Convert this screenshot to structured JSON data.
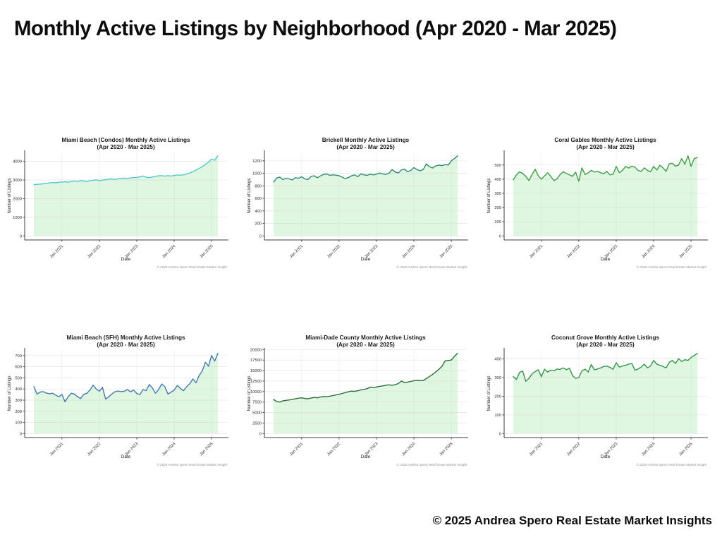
{
  "page": {
    "title": "Monthly Active Listings by Neighborhood (Apr 2020 - Mar 2025)",
    "footer": "© 2025 Andrea Spero Real Estate Market Insights"
  },
  "chart_data": [
    {
      "type": "area",
      "slug": "miami-beach-condos",
      "title": "Miami Beach (Condos) Monthly Active Listings",
      "subtitle": "(Apr 2020 - Mar 2025)",
      "xlabel": "Date",
      "ylabel": "Number of Listings",
      "watermark": "© 2025 Andrea Spero Real Estate Market Insight",
      "line_color": "#54c7cc",
      "fill_color": "#dff6e0",
      "x_range": {
        "start": "2020-04",
        "end": "2025-03",
        "freq": "monthly",
        "count": 60
      },
      "xticks": [
        "Jan 2021",
        "Jan 2022",
        "Jan 2023",
        "Jan 2024",
        "Jan 2025"
      ],
      "xtick_month_index": [
        9,
        21,
        33,
        45,
        57
      ],
      "yticks": [
        0,
        1000,
        2000,
        3000,
        4000
      ],
      "grid": true,
      "values": [
        2750,
        2765,
        2780,
        2800,
        2820,
        2845,
        2860,
        2850,
        2875,
        2890,
        2905,
        2885,
        2925,
        2950,
        2930,
        2960,
        2945,
        2925,
        2955,
        2985,
        3010,
        2965,
        2995,
        3015,
        3045,
        3060,
        3030,
        3065,
        3085,
        3105,
        3080,
        3110,
        3130,
        3140,
        3165,
        3215,
        3150,
        3125,
        3160,
        3195,
        3225,
        3235,
        3205,
        3235,
        3215,
        3245,
        3270,
        3255,
        3280,
        3320,
        3380,
        3450,
        3530,
        3620,
        3720,
        3830,
        3960,
        4120,
        4060,
        4300
      ]
    },
    {
      "type": "area",
      "slug": "brickell",
      "title": "Brickell Monthly Active Listings",
      "subtitle": "(Apr 2020 - Mar 2025)",
      "xlabel": "Date",
      "ylabel": "Number of Listings",
      "watermark": "© 2025 Andrea Spero Real Estate Market Insight",
      "line_color": "#2e8b74",
      "fill_color": "#dff6e0",
      "x_range": {
        "start": "2020-04",
        "end": "2025-03",
        "freq": "monthly",
        "count": 60
      },
      "xticks": [
        "Jan 2021",
        "Jan 2022",
        "Jan 2023",
        "Jan 2024",
        "Jan 2025"
      ],
      "xtick_month_index": [
        9,
        21,
        33,
        45,
        57
      ],
      "yticks": [
        0,
        200,
        400,
        600,
        800,
        1000,
        1200
      ],
      "grid": true,
      "values": [
        860,
        925,
        940,
        900,
        920,
        910,
        895,
        930,
        920,
        945,
        910,
        900,
        950,
        960,
        930,
        958,
        980,
        990,
        968,
        975,
        970,
        962,
        938,
        915,
        932,
        960,
        975,
        945,
        990,
        975,
        968,
        985,
        975,
        985,
        1005,
        990,
        982,
        1000,
        1060,
        1020,
        1005,
        1055,
        1065,
        1025,
        1045,
        1090,
        1060,
        1040,
        1060,
        1150,
        1105,
        1085,
        1120,
        1130,
        1122,
        1138,
        1132,
        1200,
        1235,
        1280
      ]
    },
    {
      "type": "area",
      "slug": "coral-gables",
      "title": "Coral Gables Monthly Active Listings",
      "subtitle": "(Apr 2020 - Mar 2025)",
      "xlabel": "Date",
      "ylabel": "Number of Listings",
      "watermark": "© 2025 Andrea Spero Real Estate Market Insight",
      "line_color": "#3f9d46",
      "fill_color": "#dff6e0",
      "x_range": {
        "start": "2020-04",
        "end": "2025-03",
        "freq": "monthly",
        "count": 60
      },
      "xticks": [
        "Jan 2021",
        "Jan 2022",
        "Jan 2023",
        "Jan 2024",
        "Jan 2025"
      ],
      "xtick_month_index": [
        9,
        21,
        33,
        45,
        57
      ],
      "yticks": [
        0,
        100,
        200,
        300,
        400,
        500
      ],
      "grid": true,
      "values": [
        395,
        430,
        452,
        440,
        420,
        390,
        432,
        470,
        425,
        400,
        422,
        445,
        420,
        390,
        402,
        432,
        452,
        440,
        430,
        420,
        450,
        385,
        480,
        432,
        445,
        462,
        450,
        455,
        445,
        438,
        455,
        430,
        435,
        490,
        445,
        462,
        490,
        478,
        492,
        485,
        462,
        455,
        480,
        462,
        452,
        490,
        465,
        498,
        480,
        455,
        508,
        512,
        492,
        500,
        545,
        505,
        565,
        490,
        545,
        552
      ]
    },
    {
      "type": "area",
      "slug": "miami-beach-sfh",
      "title": "Miami Beach (SFH) Monthly Active Listings",
      "subtitle": "(Apr 2020 - Mar 2025)",
      "xlabel": "Date",
      "ylabel": "Number of Listings",
      "watermark": "© 2025 Andrea Spero Real Estate Market Insight",
      "line_color": "#4679b2",
      "fill_color": "#dff6e0",
      "x_range": {
        "start": "2020-04",
        "end": "2025-03",
        "freq": "monthly",
        "count": 60
      },
      "xticks": [
        "Jan 2021",
        "Jan 2022",
        "Jan 2023",
        "Jan 2024",
        "Jan 2025"
      ],
      "xtick_month_index": [
        9,
        21,
        33,
        45,
        57
      ],
      "yticks": [
        0,
        100,
        200,
        300,
        400,
        500,
        600,
        700
      ],
      "grid": true,
      "values": [
        420,
        355,
        372,
        376,
        364,
        356,
        362,
        345,
        330,
        352,
        285,
        330,
        362,
        355,
        330,
        315,
        352,
        362,
        390,
        435,
        400,
        380,
        415,
        310,
        330,
        355,
        375,
        382,
        375,
        380,
        395,
        375,
        390,
        360,
        350,
        395,
        385,
        440,
        410,
        362,
        395,
        445,
        420,
        355,
        372,
        390,
        432,
        405,
        385,
        420,
        448,
        490,
        455,
        520,
        560,
        640,
        605,
        700,
        650,
        720
      ]
    },
    {
      "type": "area",
      "slug": "miami-dade-county",
      "title": "Miami-Dade County Monthly Active Listings",
      "subtitle": "(Apr 2020 - Mar 2025)",
      "xlabel": "Date",
      "ylabel": "Number of Listings",
      "watermark": "© 2025 Andrea Spero Real Estate Market Insight",
      "line_color": "#2d6e3c",
      "fill_color": "#dff6e0",
      "x_range": {
        "start": "2020-04",
        "end": "2025-03",
        "freq": "monthly",
        "count": 60
      },
      "xticks": [
        "Jan 2021",
        "Jan 2022",
        "Jan 2023",
        "Jan 2024",
        "Jan 2025"
      ],
      "xtick_month_index": [
        9,
        21,
        33,
        45,
        57
      ],
      "yticks": [
        0,
        2500,
        5000,
        7500,
        10000,
        12500,
        15000,
        17500,
        20000
      ],
      "grid": true,
      "values": [
        8100,
        7650,
        7500,
        7800,
        7900,
        8000,
        8100,
        8300,
        8400,
        8500,
        8350,
        8250,
        8450,
        8600,
        8500,
        8700,
        8800,
        8780,
        8900,
        9050,
        9200,
        9350,
        9550,
        9750,
        9950,
        10100,
        10050,
        10200,
        10400,
        10500,
        10700,
        11050,
        10900,
        11100,
        11250,
        11350,
        11500,
        11600,
        11500,
        11650,
        11900,
        12500,
        12150,
        12250,
        12400,
        12600,
        12700,
        12600,
        12650,
        13100,
        13600,
        14100,
        14700,
        15300,
        16000,
        17300,
        17400,
        17500,
        18400,
        19100
      ]
    },
    {
      "type": "area",
      "slug": "coconut-grove",
      "title": "Coconut Grove Monthly Active Listings",
      "subtitle": "(Apr 2020 - Mar 2025)",
      "xlabel": "Date",
      "ylabel": "Number of Listings",
      "watermark": "© 2025 Andrea Spero Real Estate Market Insight",
      "line_color": "#35944a",
      "fill_color": "#dff6e0",
      "x_range": {
        "start": "2020-04",
        "end": "2025-03",
        "freq": "monthly",
        "count": 60
      },
      "xticks": [
        "Jan 2021",
        "Jan 2022",
        "Jan 2023",
        "Jan 2024",
        "Jan 2025"
      ],
      "xtick_month_index": [
        9,
        21,
        33,
        45,
        57
      ],
      "yticks": [
        0,
        100,
        200,
        300,
        400
      ],
      "grid": true,
      "values": [
        305,
        290,
        328,
        335,
        280,
        296,
        320,
        332,
        342,
        305,
        345,
        330,
        340,
        336,
        346,
        344,
        352,
        342,
        350,
        310,
        296,
        300,
        336,
        345,
        330,
        370,
        342,
        346,
        352,
        360,
        362,
        355,
        345,
        380,
        356,
        362,
        366,
        372,
        376,
        340,
        346,
        356,
        372,
        352,
        362,
        392,
        372,
        366,
        360,
        352,
        382,
        392,
        376,
        402,
        386,
        396,
        392,
        408,
        418,
        430
      ]
    }
  ]
}
